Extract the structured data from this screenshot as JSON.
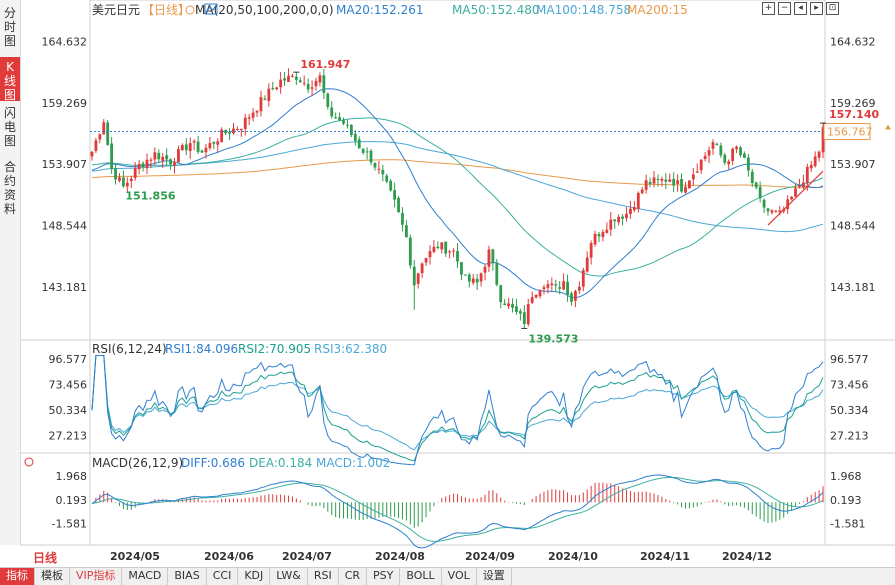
{
  "left_tabs": [
    {
      "label": "分时图",
      "active": false
    },
    {
      "label": "K线图",
      "active": true
    },
    {
      "label": "闪电图",
      "active": false
    },
    {
      "label": "合约资料",
      "active": false
    }
  ],
  "header": {
    "symbol": "美元日元",
    "period": "【日线】",
    "ma_label": "MA(20,50,100,200,0,0)",
    "ma20": "MA20:152.261",
    "ma50": "MA50:152.480",
    "ma100": "MA100:148.758",
    "ma200": "MA200:15"
  },
  "toolbar": {
    "icons": [
      "zoom-in-icon",
      "zoom-out-icon",
      "scroll-left-icon",
      "scroll-right-icon",
      "restore-icon"
    ],
    "glyphs": [
      "+",
      "−",
      "◂",
      "▸",
      "⊡"
    ]
  },
  "colors": {
    "up": "#e03a3a",
    "down": "#2e9c4d",
    "ma20": "#2f7fd0",
    "ma50": "#3db0a0",
    "ma100": "#4aa8d8",
    "ma200": "#e89a4a",
    "rsi1": "#2f7fd0",
    "rsi2": "#1aa090",
    "rsi3": "#4aa8d8",
    "diff": "#2f7fd0",
    "dea": "#3db0a0"
  },
  "chart_data": [
    {
      "type": "candlestick",
      "title": "美元日元 日线",
      "y_ticks": [
        "164.632",
        "159.269",
        "153.907",
        "148.544",
        "143.181"
      ],
      "ylim": [
        139.0,
        166.5
      ],
      "annotations": {
        "high": "161.947",
        "low": "139.573",
        "first_low": "151.856",
        "last": "157.140",
        "current_price": "156.767"
      },
      "x_labels": [
        "2024/05",
        "2024/06",
        "2024/07",
        "2024/08",
        "2024/09",
        "2024/10",
        "2024/11",
        "2024/12"
      ],
      "anchors": [
        [
          0,
          155.0
        ],
        [
          3,
          157.8
        ],
        [
          5,
          153.5
        ],
        [
          8,
          151.9
        ],
        [
          12,
          153.8
        ],
        [
          16,
          154.8
        ],
        [
          20,
          154.2
        ],
        [
          25,
          155.8
        ],
        [
          28,
          155.0
        ],
        [
          33,
          156.5
        ],
        [
          38,
          157.3
        ],
        [
          44,
          159.8
        ],
        [
          48,
          161.2
        ],
        [
          52,
          161.6
        ],
        [
          55,
          160.8
        ],
        [
          58,
          161.5
        ],
        [
          60,
          158.5
        ],
        [
          64,
          157.5
        ],
        [
          68,
          155.5
        ],
        [
          71,
          154.4
        ],
        [
          74,
          152.7
        ],
        [
          77,
          150.5
        ],
        [
          80,
          147.5
        ],
        [
          82,
          143.5
        ],
        [
          84,
          145.5
        ],
        [
          88,
          146.8
        ],
        [
          92,
          146.3
        ],
        [
          95,
          143.8
        ],
        [
          98,
          143.5
        ],
        [
          101,
          146.2
        ],
        [
          104,
          142.3
        ],
        [
          107,
          141.2
        ],
        [
          110,
          140.2
        ],
        [
          112,
          142.6
        ],
        [
          115,
          143.6
        ],
        [
          118,
          143.0
        ],
        [
          120,
          143.7
        ],
        [
          122,
          142.1
        ],
        [
          124,
          143.6
        ],
        [
          127,
          147.2
        ],
        [
          130,
          148.3
        ],
        [
          133,
          149.3
        ],
        [
          136,
          149.6
        ],
        [
          138,
          150.6
        ],
        [
          141,
          152.3
        ],
        [
          144,
          152.4
        ],
        [
          147,
          152.7
        ],
        [
          150,
          151.9
        ],
        [
          153,
          153.2
        ],
        [
          156,
          154.7
        ],
        [
          158,
          155.8
        ],
        [
          161,
          154.1
        ],
        [
          164,
          155.3
        ],
        [
          166,
          154.1
        ],
        [
          168,
          152.3
        ],
        [
          170,
          150.6
        ],
        [
          172,
          149.8
        ],
        [
          175,
          149.5
        ],
        [
          177,
          150.4
        ],
        [
          179,
          151.5
        ],
        [
          181,
          152.7
        ],
        [
          183,
          153.8
        ],
        [
          185,
          155.1
        ],
        [
          186,
          157.14
        ]
      ],
      "series_names": [
        "MA20",
        "MA50",
        "MA100",
        "MA200"
      ]
    },
    {
      "type": "line",
      "title": "RSI(6,12,24)",
      "legend": [
        "RSI1:84.096",
        "RSI2:70.905",
        "RSI3:62.380"
      ],
      "y_ticks": [
        "96.577",
        "73.456",
        "50.334",
        "27.213"
      ],
      "ylim": [
        12,
        105
      ]
    },
    {
      "type": "bar",
      "title": "MACD(26,12,9)",
      "legend": [
        "DIFF:0.686",
        "DEA:0.184",
        "MACD:1.002"
      ],
      "y_ticks": [
        "1.968",
        "0.193",
        "-1.581"
      ],
      "ylim": [
        -3.2,
        2.8
      ]
    }
  ],
  "bottom_bar": {
    "period_tab": "日线",
    "items": [
      "指标",
      "模板",
      "VIP指标",
      "MACD",
      "BIAS",
      "CCI",
      "KDJ",
      "LW&",
      "RSI",
      "CR",
      "PSY",
      "BOLL",
      "VOL",
      "设置"
    ]
  }
}
